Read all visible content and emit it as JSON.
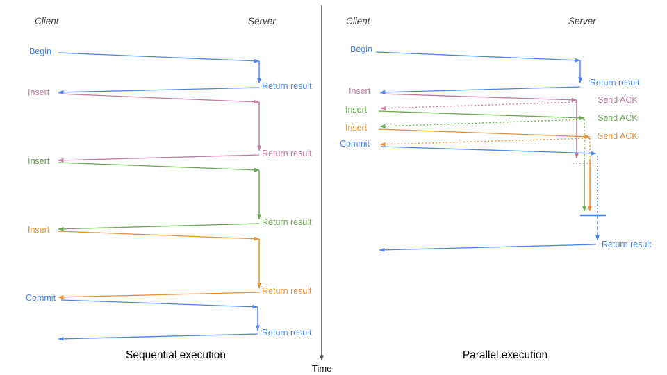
{
  "colors": {
    "blue": "#4a86e8",
    "pink": "#c27ba0",
    "green": "#6aa84f",
    "orange": "#e69138",
    "axis": "#555555"
  },
  "time_axis": {
    "label": "Time"
  },
  "left_panel": {
    "title": "Sequential execution",
    "client": "Client",
    "server": "Server",
    "rows": [
      {
        "request": "Begin",
        "response": "Return result",
        "color": "blue"
      },
      {
        "request": "Insert",
        "response": "Return result",
        "color": "pink"
      },
      {
        "request": "Insert",
        "response": "Return result",
        "color": "green"
      },
      {
        "request": "Insert",
        "response": "Return result",
        "color": "orange"
      },
      {
        "request": "Commit",
        "response": "Return result",
        "color": "blue"
      }
    ]
  },
  "right_panel": {
    "title": "Parallel execution",
    "client": "Client",
    "server": "Server",
    "rows": [
      {
        "request": "Begin",
        "response": "Return result",
        "color": "blue"
      },
      {
        "request": "Insert",
        "response": "Send ACK",
        "color": "pink"
      },
      {
        "request": "Insert",
        "response": "Send ACK",
        "color": "green"
      },
      {
        "request": "Insert",
        "response": "Send ACK",
        "color": "orange"
      },
      {
        "request": "Commit",
        "response": "Return result",
        "color": "blue"
      }
    ]
  }
}
